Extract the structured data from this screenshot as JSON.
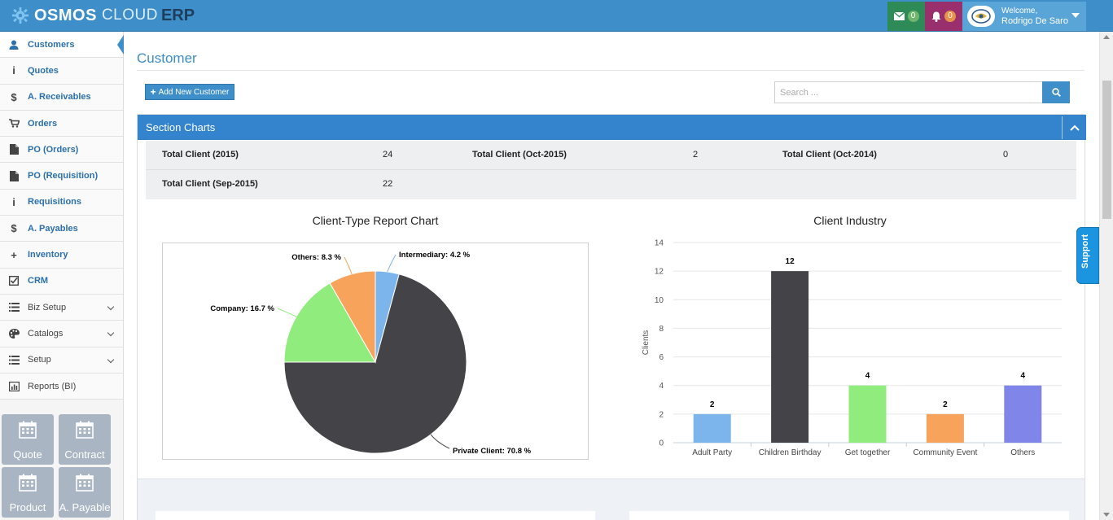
{
  "brand": {
    "part1": "OSMOS",
    "part2": "CLOUD",
    "part3": "ERP"
  },
  "header": {
    "messages_count": "0",
    "notifications_count": "0",
    "welcome": "Welcome,",
    "user_name": "Rodrigo De Saro"
  },
  "sidebar": {
    "items": [
      {
        "label": "Customers",
        "icon": "user-icon"
      },
      {
        "label": "Quotes",
        "icon": "info-icon"
      },
      {
        "label": "A. Receivables",
        "icon": "dollar-icon"
      },
      {
        "label": "Orders",
        "icon": "cart-icon"
      },
      {
        "label": "PO (Orders)",
        "icon": "file-icon"
      },
      {
        "label": "PO (Requisition)",
        "icon": "file-icon"
      },
      {
        "label": "Requisitions",
        "icon": "info-icon"
      },
      {
        "label": "A. Payables",
        "icon": "dollar-icon"
      },
      {
        "label": "Inventory",
        "icon": "plus-icon"
      },
      {
        "label": "CRM",
        "icon": "checkbox-icon"
      },
      {
        "label": "Biz Setup",
        "icon": "list-icon"
      },
      {
        "label": "Catalogs",
        "icon": "palette-icon"
      },
      {
        "label": "Setup",
        "icon": "list-icon"
      },
      {
        "label": "Reports (BI)",
        "icon": "bar-chart-icon"
      }
    ],
    "quick_buttons": [
      "Quote",
      "Contract",
      "Product",
      "A. Payable"
    ]
  },
  "main": {
    "title": "Customer",
    "add_button": "Add New Customer",
    "search_placeholder": "Search ..."
  },
  "section": {
    "title": "Section Charts",
    "stats": [
      {
        "label": "Total Client (2015)",
        "value": "24"
      },
      {
        "label": "Total Client (Oct-2015)",
        "value": "2"
      },
      {
        "label": "Total Client (Oct-2014)",
        "value": "0"
      },
      {
        "label": "Total Client (Sep-2015)",
        "value": "22"
      }
    ]
  },
  "chart_data": [
    {
      "type": "pie",
      "title": "Client-Type Report Chart",
      "labels": [
        "Intermediary",
        "Private Client",
        "Company",
        "Others"
      ],
      "values": [
        4.2,
        70.8,
        16.7,
        8.3
      ],
      "data_labels": [
        "Intermediary: 4.2 %",
        "Private Client: 70.8 %",
        "Company: 16.7 %",
        "Others: 8.3 %"
      ],
      "colors": [
        "#7cb5ec",
        "#434348",
        "#90ed7d",
        "#f7a35c"
      ]
    },
    {
      "type": "bar",
      "title": "Client Industry",
      "categories": [
        "Adult Party",
        "Children Birthday",
        "Get together",
        "Community Event",
        "Others"
      ],
      "values": [
        2,
        12,
        4,
        2,
        4
      ],
      "colors": [
        "#7cb5ec",
        "#434348",
        "#90ed7d",
        "#f7a35c",
        "#8085e9"
      ],
      "ylabel": "Clients",
      "ylim": [
        0,
        14
      ],
      "yticks": [
        0,
        2,
        4,
        6,
        8,
        10,
        12,
        14
      ],
      "grid": true
    }
  ],
  "support_label": "Support"
}
